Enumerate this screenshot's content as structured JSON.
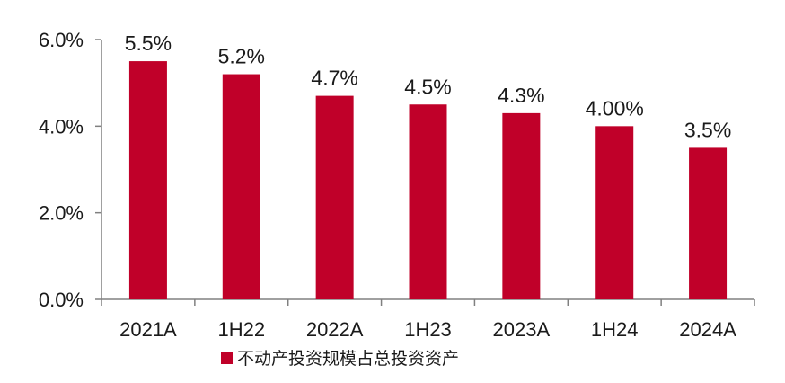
{
  "chart_data": {
    "type": "bar",
    "title": "",
    "xlabel": "",
    "ylabel": "",
    "categories": [
      "2021A",
      "1H22",
      "2022A",
      "1H23",
      "2023A",
      "1H24",
      "2024A"
    ],
    "series": [
      {
        "name": "不动产投资规模占总投资资产",
        "values": [
          5.5,
          5.2,
          4.7,
          4.5,
          4.3,
          4.0,
          3.5
        ],
        "labels": [
          "5.5%",
          "5.2%",
          "4.7%",
          "4.5%",
          "4.3%",
          "4.00%",
          "3.5%"
        ],
        "color": "#C00029"
      }
    ],
    "ylim": [
      0,
      6
    ],
    "yticks": [
      0,
      2,
      4,
      6
    ],
    "ytick_labels": [
      "0.0%",
      "2.0%",
      "4.0%",
      "6.0%"
    ],
    "grid": false,
    "legend_position": "bottom-center",
    "axis_color": "#808080"
  }
}
